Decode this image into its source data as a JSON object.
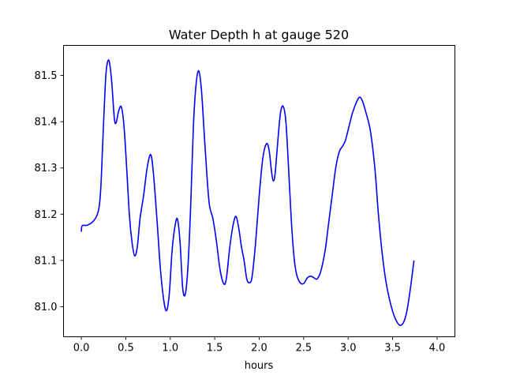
{
  "chart_data": {
    "type": "line",
    "title": "Water Depth h at gauge 520",
    "xlabel": "hours",
    "ylabel": "",
    "xlim": [
      -0.2,
      4.2
    ],
    "ylim": [
      80.935,
      81.565
    ],
    "xticks": [
      0.0,
      0.5,
      1.0,
      1.5,
      2.0,
      2.5,
      3.0,
      3.5,
      4.0
    ],
    "xtick_labels": [
      "0.0",
      "0.5",
      "1.0",
      "1.5",
      "2.0",
      "2.5",
      "3.0",
      "3.5",
      "4.0"
    ],
    "yticks": [
      81.0,
      81.1,
      81.2,
      81.3,
      81.4,
      81.5
    ],
    "ytick_labels": [
      "81.0",
      "81.1",
      "81.2",
      "81.3",
      "81.4",
      "81.5"
    ],
    "grid": false,
    "legend": "none",
    "series": [
      {
        "color": "#0000ff",
        "points": [
          [
            0.0,
            81.162
          ],
          [
            0.01,
            81.175
          ],
          [
            0.06,
            81.176
          ],
          [
            0.12,
            81.182
          ],
          [
            0.17,
            81.195
          ],
          [
            0.2,
            81.215
          ],
          [
            0.22,
            81.26
          ],
          [
            0.24,
            81.35
          ],
          [
            0.26,
            81.44
          ],
          [
            0.28,
            81.51
          ],
          [
            0.31,
            81.533
          ],
          [
            0.34,
            81.49
          ],
          [
            0.37,
            81.41
          ],
          [
            0.39,
            81.397
          ],
          [
            0.42,
            81.423
          ],
          [
            0.45,
            81.432
          ],
          [
            0.48,
            81.39
          ],
          [
            0.51,
            81.3
          ],
          [
            0.54,
            81.2
          ],
          [
            0.57,
            81.14
          ],
          [
            0.6,
            81.11
          ],
          [
            0.63,
            81.13
          ],
          [
            0.66,
            81.19
          ],
          [
            0.7,
            81.24
          ],
          [
            0.74,
            81.3
          ],
          [
            0.78,
            81.329
          ],
          [
            0.81,
            81.29
          ],
          [
            0.85,
            81.19
          ],
          [
            0.89,
            81.08
          ],
          [
            0.93,
            81.01
          ],
          [
            0.96,
            80.992
          ],
          [
            0.99,
            81.03
          ],
          [
            1.02,
            81.12
          ],
          [
            1.05,
            81.17
          ],
          [
            1.08,
            81.19
          ],
          [
            1.11,
            81.14
          ],
          [
            1.14,
            81.04
          ],
          [
            1.17,
            81.028
          ],
          [
            1.2,
            81.09
          ],
          [
            1.23,
            81.22
          ],
          [
            1.26,
            81.39
          ],
          [
            1.29,
            81.48
          ],
          [
            1.32,
            81.51
          ],
          [
            1.35,
            81.47
          ],
          [
            1.38,
            81.38
          ],
          [
            1.41,
            81.29
          ],
          [
            1.44,
            81.22
          ],
          [
            1.48,
            81.19
          ],
          [
            1.52,
            81.14
          ],
          [
            1.56,
            81.08
          ],
          [
            1.6,
            81.05
          ],
          [
            1.63,
            81.06
          ],
          [
            1.67,
            81.13
          ],
          [
            1.71,
            81.18
          ],
          [
            1.74,
            81.195
          ],
          [
            1.77,
            81.17
          ],
          [
            1.8,
            81.13
          ],
          [
            1.83,
            81.1
          ],
          [
            1.86,
            81.06
          ],
          [
            1.89,
            81.052
          ],
          [
            1.92,
            81.065
          ],
          [
            1.96,
            81.14
          ],
          [
            2.0,
            81.24
          ],
          [
            2.04,
            81.32
          ],
          [
            2.08,
            81.352
          ],
          [
            2.11,
            81.34
          ],
          [
            2.14,
            81.29
          ],
          [
            2.16,
            81.272
          ],
          [
            2.18,
            81.29
          ],
          [
            2.21,
            81.36
          ],
          [
            2.24,
            81.42
          ],
          [
            2.27,
            81.433
          ],
          [
            2.3,
            81.4
          ],
          [
            2.33,
            81.3
          ],
          [
            2.36,
            81.19
          ],
          [
            2.39,
            81.11
          ],
          [
            2.42,
            81.07
          ],
          [
            2.46,
            81.052
          ],
          [
            2.5,
            81.05
          ],
          [
            2.54,
            81.062
          ],
          [
            2.58,
            81.066
          ],
          [
            2.62,
            81.062
          ],
          [
            2.65,
            81.06
          ],
          [
            2.69,
            81.075
          ],
          [
            2.74,
            81.12
          ],
          [
            2.78,
            81.18
          ],
          [
            2.82,
            81.24
          ],
          [
            2.86,
            81.3
          ],
          [
            2.9,
            81.335
          ],
          [
            2.94,
            81.348
          ],
          [
            2.97,
            81.36
          ],
          [
            3.01,
            81.39
          ],
          [
            3.05,
            81.42
          ],
          [
            3.1,
            81.445
          ],
          [
            3.13,
            81.453
          ],
          [
            3.16,
            81.445
          ],
          [
            3.2,
            81.42
          ],
          [
            3.25,
            81.38
          ],
          [
            3.3,
            81.3
          ],
          [
            3.34,
            81.2
          ],
          [
            3.38,
            81.12
          ],
          [
            3.42,
            81.06
          ],
          [
            3.46,
            81.02
          ],
          [
            3.5,
            80.99
          ],
          [
            3.54,
            80.97
          ],
          [
            3.58,
            80.96
          ],
          [
            3.62,
            80.965
          ],
          [
            3.66,
            80.99
          ],
          [
            3.7,
            81.04
          ],
          [
            3.74,
            81.1
          ]
        ]
      }
    ]
  }
}
